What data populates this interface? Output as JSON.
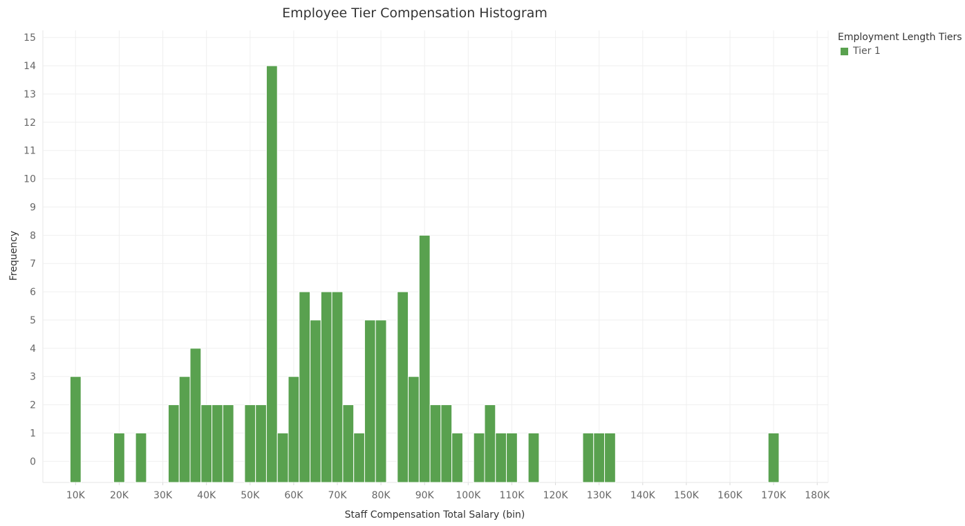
{
  "chart_data": {
    "type": "bar",
    "title": "Employee Tier Compensation Histogram",
    "xlabel": "Staff Compensation Total Salary (bin)",
    "ylabel": "Frequency",
    "bin_width": 2500,
    "xlim": [
      2500,
      182500
    ],
    "ylim": [
      -0.75,
      15.25
    ],
    "x_ticks": [
      10000,
      20000,
      30000,
      40000,
      50000,
      60000,
      70000,
      80000,
      90000,
      100000,
      110000,
      120000,
      130000,
      140000,
      150000,
      160000,
      170000,
      180000
    ],
    "x_tick_labels": [
      "10K",
      "20K",
      "30K",
      "40K",
      "50K",
      "60K",
      "70K",
      "80K",
      "90K",
      "100K",
      "110K",
      "120K",
      "130K",
      "140K",
      "150K",
      "160K",
      "170K",
      "180K"
    ],
    "y_ticks": [
      0,
      1,
      2,
      3,
      4,
      5,
      6,
      7,
      8,
      9,
      10,
      11,
      12,
      13,
      14,
      15
    ],
    "y_tick_labels": [
      "0",
      "1",
      "2",
      "3",
      "4",
      "5",
      "6",
      "7",
      "8",
      "9",
      "10",
      "11",
      "12",
      "13",
      "14",
      "15"
    ],
    "grid": true,
    "legend_position": "top-right",
    "series": [
      {
        "name": "Tier 1",
        "color": "#59a14f",
        "bins": [
          10000,
          20000,
          25000,
          32500,
          35000,
          37500,
          40000,
          42500,
          45000,
          50000,
          52500,
          55000,
          57500,
          60000,
          62500,
          65000,
          67500,
          70000,
          72500,
          75000,
          77500,
          80000,
          85000,
          87500,
          90000,
          92500,
          95000,
          97500,
          102500,
          105000,
          107500,
          110000,
          115000,
          127500,
          130000,
          132500,
          170000
        ],
        "values": [
          3,
          1,
          1,
          2,
          3,
          4,
          2,
          2,
          2,
          2,
          2,
          14,
          1,
          3,
          6,
          5,
          6,
          6,
          2,
          1,
          5,
          5,
          6,
          3,
          8,
          2,
          2,
          1,
          1,
          2,
          1,
          1,
          1,
          1,
          1,
          1,
          1
        ]
      }
    ]
  },
  "legend": {
    "title": "Employment Length Tiers",
    "items": [
      {
        "label": "Tier 1",
        "color": "#59a14f"
      }
    ]
  }
}
